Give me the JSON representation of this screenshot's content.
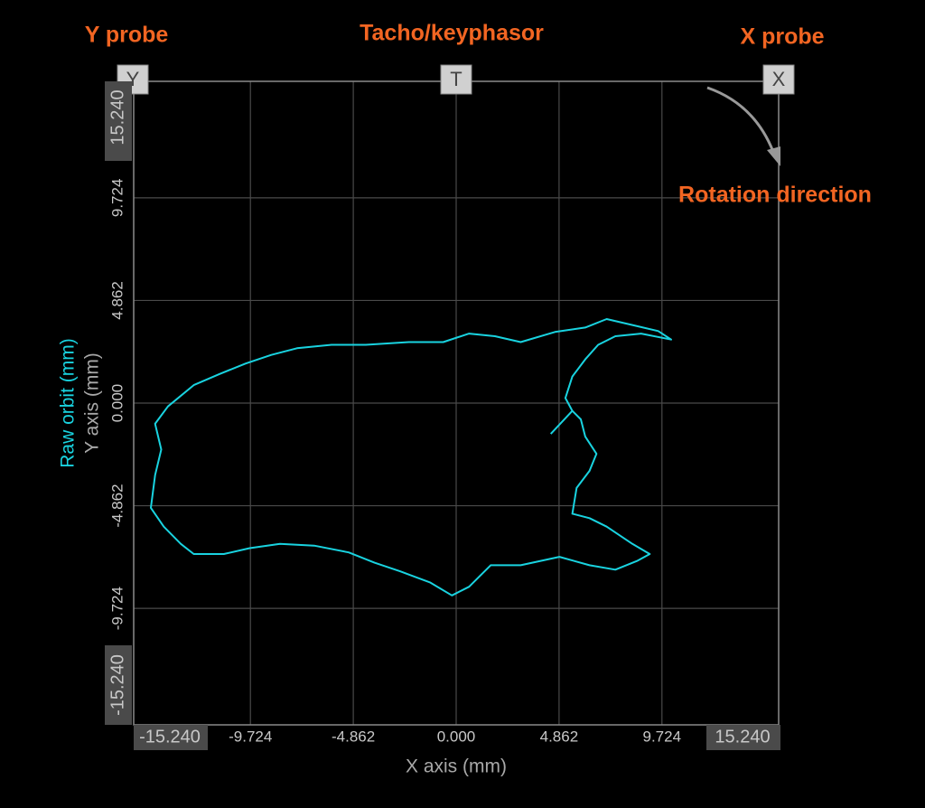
{
  "chart_data": {
    "type": "line",
    "xlabel": "X axis (mm)",
    "ylabel": "Y axis (mm)",
    "annotations": [
      "Y probe",
      "Tacho/keyphasor",
      "X probe",
      "Rotation direction"
    ],
    "probe_markers": [
      "Y",
      "T",
      "X"
    ],
    "xlim": [
      -15.24,
      15.24
    ],
    "ylim": [
      -15.24,
      15.24
    ],
    "xticks": [
      {
        "value": -15.24,
        "label": "-15.240"
      },
      -9.724,
      -4.862,
      {
        "value": 0,
        "label": "0.000"
      },
      4.862,
      9.724,
      {
        "value": 15.24,
        "label": "15.240"
      }
    ],
    "yticks": [
      {
        "value": -15.24,
        "label": "-15.240"
      },
      -9.724,
      -4.862,
      {
        "value": 0,
        "label": "0.000"
      },
      4.862,
      9.724,
      {
        "value": 15.24,
        "label": "15.240"
      }
    ],
    "grid": true,
    "series": [
      {
        "name": "Raw orbit (mm)",
        "color": "#19d3e0",
        "x": [
          4.47,
          5.49,
          5.16,
          5.49,
          6.1,
          6.71,
          7.52,
          8.74,
          10.16,
          9.55,
          8.33,
          7.11,
          6.1,
          4.67,
          3.05,
          1.83,
          0.61,
          -0.61,
          -2.24,
          -4.27,
          -5.89,
          -7.52,
          -8.74,
          -9.96,
          -11.18,
          -12.4,
          -13.62,
          -14.23,
          -13.94,
          -14.23,
          -14.43,
          -13.82,
          -13.01,
          -12.4,
          -10.98,
          -9.76,
          -8.33,
          -6.71,
          -5.08,
          -3.86,
          -2.64,
          -1.22,
          -0.2,
          0.61,
          1.63,
          3.05,
          4.88,
          6.3,
          7.52,
          8.54,
          9.15,
          8.33,
          7.11,
          6.3,
          5.49,
          5.69,
          6.3,
          6.63,
          6.1,
          5.89,
          5.49
        ],
        "values": [
          -1.46,
          -0.37,
          0.24,
          1.26,
          2.07,
          2.76,
          3.17,
          3.29,
          3.01,
          3.41,
          3.7,
          3.98,
          3.58,
          3.37,
          2.89,
          3.17,
          3.29,
          2.89,
          2.89,
          2.76,
          2.76,
          2.6,
          2.28,
          1.87,
          1.38,
          0.85,
          -0.16,
          -0.98,
          -2.2,
          -3.41,
          -4.96,
          -5.85,
          -6.67,
          -7.15,
          -7.15,
          -6.87,
          -6.67,
          -6.75,
          -7.07,
          -7.56,
          -7.97,
          -8.5,
          -9.11,
          -8.7,
          -7.68,
          -7.68,
          -7.28,
          -7.68,
          -7.89,
          -7.48,
          -7.15,
          -6.67,
          -5.85,
          -5.45,
          -5.24,
          -4.02,
          -3.21,
          -2.4,
          -1.59,
          -0.77,
          -0.37
        ]
      }
    ]
  }
}
